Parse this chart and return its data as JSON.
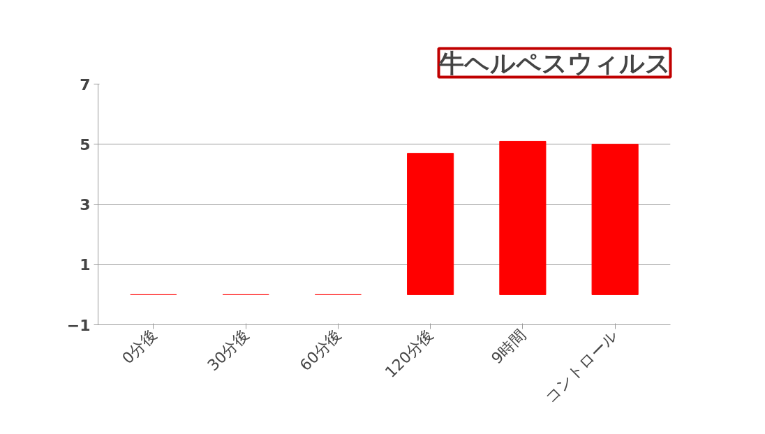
{
  "chart_data": {
    "type": "bar",
    "title": "牛ヘルペスウィルス",
    "categories": [
      "0分後",
      "30分後",
      "60分後",
      "120分後",
      "9時間",
      "コントロール"
    ],
    "values": [
      0,
      0,
      0,
      4.7,
      5.1,
      5.0
    ],
    "color": "#ff0000",
    "ylim": [
      -1,
      7
    ],
    "yticks": [
      -1,
      1,
      3,
      5,
      7
    ],
    "grid": "y"
  }
}
